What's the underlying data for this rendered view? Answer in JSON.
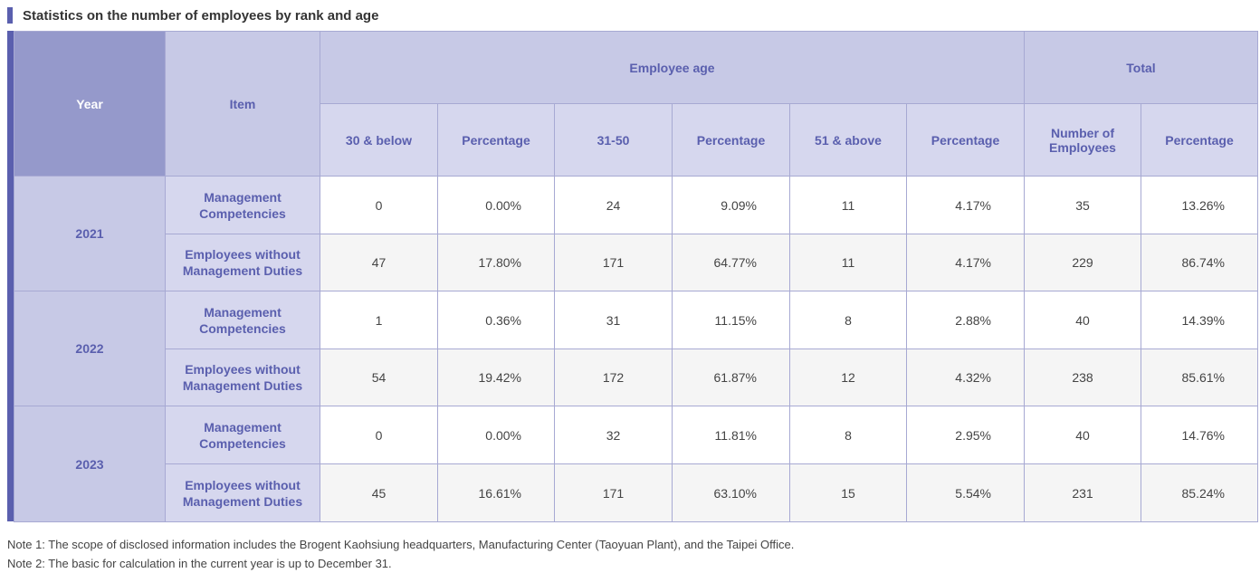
{
  "title": "Statistics on the number of employees by rank and age",
  "header": {
    "year": "Year",
    "item": "Item",
    "employee_age": "Employee age",
    "total": "Total",
    "sub": [
      "30 & below",
      "Percentage",
      "31-50",
      "Percentage",
      "51 & above",
      "Percentage",
      "Number of Employees",
      "Percentage"
    ]
  },
  "rows": [
    {
      "year": "2021",
      "item": "Management Competencies",
      "values": [
        "0",
        "0.00%",
        "24",
        "9.09%",
        "11",
        "4.17%",
        "35",
        "13.26%"
      ]
    },
    {
      "year": "2021",
      "item": "Employees without Management Duties",
      "values": [
        "47",
        "17.80%",
        "171",
        "64.77%",
        "11",
        "4.17%",
        "229",
        "86.74%"
      ]
    },
    {
      "year": "2022",
      "item": "Management Competencies",
      "values": [
        "1",
        "0.36%",
        "31",
        "11.15%",
        "8",
        "2.88%",
        "40",
        "14.39%"
      ]
    },
    {
      "year": "2022",
      "item": "Employees without Management Duties",
      "values": [
        "54",
        "19.42%",
        "172",
        "61.87%",
        "12",
        "4.32%",
        "238",
        "85.61%"
      ]
    },
    {
      "year": "2023",
      "item": "Management Competencies",
      "values": [
        "0",
        "0.00%",
        "32",
        "11.81%",
        "8",
        "2.95%",
        "40",
        "14.76%"
      ]
    },
    {
      "year": "2023",
      "item": "Employees without Management Duties",
      "values": [
        "45",
        "16.61%",
        "171",
        "63.10%",
        "15",
        "5.54%",
        "231",
        "85.24%"
      ]
    }
  ],
  "notes": [
    "Note 1: The scope of disclosed information includes the Brogent Kaohsiung headquarters, Manufacturing Center (Taoyuan Plant), and the Taipei Office.",
    "Note 2: The basic for calculation in the current year is up to December 31."
  ],
  "colors": {
    "accent": "#5a5fae",
    "header_dark": "#9599cb",
    "header_light": "#c7c9e6",
    "header_sub": "#d6d7ee"
  }
}
